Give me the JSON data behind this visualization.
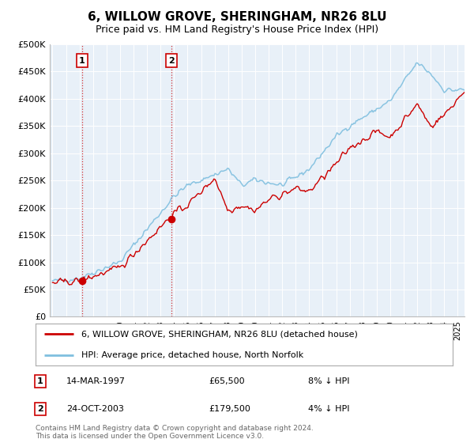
{
  "title": "6, WILLOW GROVE, SHERINGHAM, NR26 8LU",
  "subtitle": "Price paid vs. HM Land Registry's House Price Index (HPI)",
  "legend_line1": "6, WILLOW GROVE, SHERINGHAM, NR26 8LU (detached house)",
  "legend_line2": "HPI: Average price, detached house, North Norfolk",
  "sale1_label": "1",
  "sale1_date": "14-MAR-1997",
  "sale1_price": "£65,500",
  "sale1_hpi": "8% ↓ HPI",
  "sale1_year": 1997.2,
  "sale1_value": 65500,
  "sale2_label": "2",
  "sale2_date": "24-OCT-2003",
  "sale2_price": "£179,500",
  "sale2_hpi": "4% ↓ HPI",
  "sale2_year": 2003.8,
  "sale2_value": 179500,
  "hpi_color": "#7fbfdf",
  "price_color": "#cc0000",
  "dot_color": "#cc0000",
  "plot_bg_color": "#e8f0f8",
  "footer": "Contains HM Land Registry data © Crown copyright and database right 2024.\nThis data is licensed under the Open Government Licence v3.0.",
  "ylim": [
    0,
    500000
  ],
  "yticks": [
    0,
    50000,
    100000,
    150000,
    200000,
    250000,
    300000,
    350000,
    400000,
    450000,
    500000
  ],
  "ytick_labels": [
    "£0",
    "£50K",
    "£100K",
    "£150K",
    "£200K",
    "£250K",
    "£300K",
    "£350K",
    "£400K",
    "£450K",
    "£500K"
  ],
  "xmin": 1994.8,
  "xmax": 2025.5
}
